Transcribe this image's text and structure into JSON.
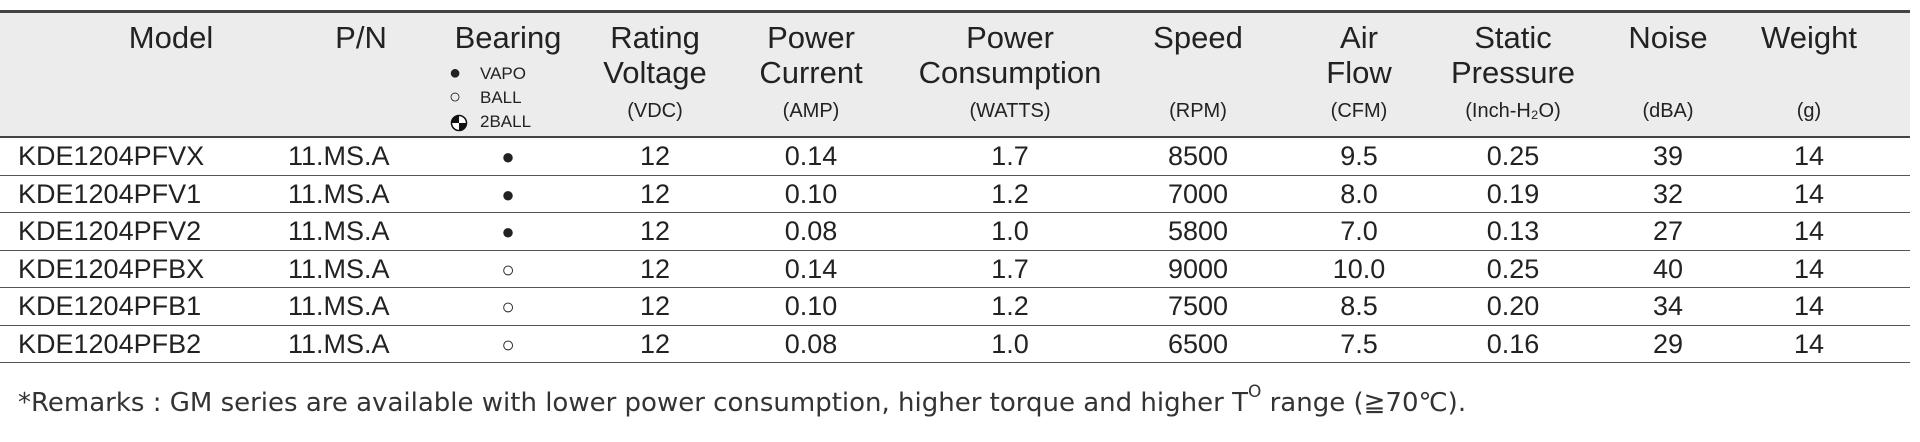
{
  "table": {
    "columns": [
      {
        "title": [
          "Model"
        ],
        "unit": null
      },
      {
        "title": [
          "P/N"
        ],
        "unit": null
      },
      {
        "title": [
          "Bearing"
        ],
        "unit": null
      },
      {
        "title": [
          "Rating",
          "Voltage"
        ],
        "unit": "(VDC)"
      },
      {
        "title": [
          "Power",
          "Current"
        ],
        "unit": "(AMP)"
      },
      {
        "title": [
          "Power",
          "Consumption"
        ],
        "unit": "(WATTS)"
      },
      {
        "title": [
          "Speed"
        ],
        "unit": "(RPM)"
      },
      {
        "title": [
          "Air",
          "Flow"
        ],
        "unit": "(CFM)"
      },
      {
        "title": [
          "Static",
          "Pressure"
        ],
        "unit": "(Inch-H₂O)"
      },
      {
        "title": [
          "Noise"
        ],
        "unit": "(dBA)"
      },
      {
        "title": [
          "Weight"
        ],
        "unit": "(g)"
      }
    ],
    "bearing_legend": [
      "VAPO",
      "BALL",
      "2BALL"
    ],
    "rows": [
      [
        "KDE1204PFVX",
        "11.MS.A",
        "●",
        "12",
        "0.14",
        "1.7",
        "8500",
        "9.5",
        "0.25",
        "39",
        "14"
      ],
      [
        "KDE1204PFV1",
        "11.MS.A",
        "●",
        "12",
        "0.10",
        "1.2",
        "7000",
        "8.0",
        "0.19",
        "32",
        "14"
      ],
      [
        "KDE1204PFV2",
        "11.MS.A",
        "●",
        "12",
        "0.08",
        "1.0",
        "5800",
        "7.0",
        "0.13",
        "27",
        "14"
      ],
      [
        "KDE1204PFBX",
        "11.MS.A",
        "○",
        "12",
        "0.14",
        "1.7",
        "9000",
        "10.0",
        "0.25",
        "40",
        "14"
      ],
      [
        "KDE1204PFB1",
        "11.MS.A",
        "○",
        "12",
        "0.10",
        "1.2",
        "7500",
        "8.5",
        "0.20",
        "34",
        "14"
      ],
      [
        "KDE1204PFB2",
        "11.MS.A",
        "○",
        "12",
        "0.08",
        "1.0",
        "6500",
        "7.5",
        "0.16",
        "29",
        "14"
      ]
    ]
  },
  "remark": [
    "*Remarks : GM series are available with lower power consumption, higher torque and higher T",
    "O",
    " range (≧70℃)."
  ]
}
